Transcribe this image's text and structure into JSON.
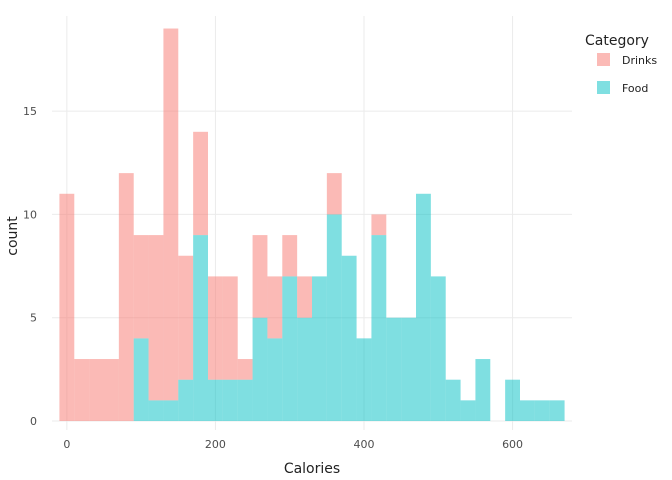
{
  "chart_data": {
    "type": "bar",
    "subtype": "stacked-histogram",
    "title": "",
    "xlabel": "Calories",
    "ylabel": "count",
    "bin_width": 20,
    "xlim": [
      -20,
      680
    ],
    "ylim": [
      0,
      19
    ],
    "x_ticks": [
      0,
      200,
      400,
      600
    ],
    "y_ticks": [
      0,
      5,
      10,
      15
    ],
    "grid": true,
    "legend": {
      "title": "Category",
      "position": "right"
    },
    "series": [
      {
        "name": "Drinks",
        "color": "#F8766D",
        "bin_starts": [
          -10,
          10,
          30,
          50,
          70,
          90,
          110,
          130,
          150,
          170,
          190,
          210,
          230,
          250,
          270,
          290,
          310,
          330,
          350,
          370,
          390,
          410,
          430,
          450,
          470,
          490,
          510,
          530,
          550,
          570,
          590,
          610,
          630,
          650
        ],
        "values": [
          11,
          3,
          3,
          3,
          12,
          5,
          8,
          18,
          6,
          5,
          5,
          5,
          1,
          4,
          3,
          2,
          2,
          0,
          2,
          0,
          0,
          1,
          0,
          0,
          0,
          0,
          0,
          0,
          0,
          0,
          0,
          0,
          0,
          0
        ]
      },
      {
        "name": "Food",
        "color": "#00BFC4",
        "bin_starts": [
          -10,
          10,
          30,
          50,
          70,
          90,
          110,
          130,
          150,
          170,
          190,
          210,
          230,
          250,
          270,
          290,
          310,
          330,
          350,
          370,
          390,
          410,
          430,
          450,
          470,
          490,
          510,
          530,
          550,
          570,
          590,
          610,
          630,
          650
        ],
        "values": [
          0,
          0,
          0,
          0,
          0,
          4,
          1,
          1,
          2,
          9,
          2,
          2,
          2,
          5,
          4,
          7,
          5,
          7,
          10,
          8,
          4,
          9,
          5,
          5,
          11,
          7,
          2,
          1,
          3,
          0,
          2,
          1,
          1,
          1
        ]
      }
    ]
  }
}
